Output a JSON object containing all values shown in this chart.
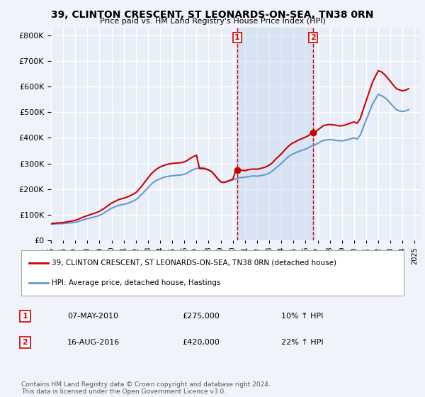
{
  "title": "39, CLINTON CRESCENT, ST LEONARDS-ON-SEA, TN38 0RN",
  "subtitle": "Price paid vs. HM Land Registry's House Price Index (HPI)",
  "ylabel_ticks": [
    "£0",
    "£100K",
    "£200K",
    "£300K",
    "£400K",
    "£500K",
    "£600K",
    "£700K",
    "£800K"
  ],
  "ytick_values": [
    0,
    100000,
    200000,
    300000,
    400000,
    500000,
    600000,
    700000,
    800000
  ],
  "ylim": [
    0,
    830000
  ],
  "xlim_start": 1995.0,
  "xlim_end": 2025.5,
  "background_color": "#f0f4fa",
  "plot_bg_color": "#e8eef8",
  "grid_color": "#ffffff",
  "transaction1": {
    "date": 2010.36,
    "price": 275000,
    "label": "1",
    "label_date": "07-MAY-2010",
    "label_price": "£275,000",
    "label_hpi": "10% ↑ HPI"
  },
  "transaction2": {
    "date": 2016.62,
    "price": 420000,
    "label": "2",
    "label_date": "16-AUG-2016",
    "label_price": "£420,000",
    "label_hpi": "22% ↑ HPI"
  },
  "red_line_color": "#cc0000",
  "blue_line_color": "#6699cc",
  "vline_color": "#cc0000",
  "legend_label1": "39, CLINTON CRESCENT, ST LEONARDS-ON-SEA, TN38 0RN (detached house)",
  "legend_label2": "HPI: Average price, detached house, Hastings",
  "footer": "Contains HM Land Registry data © Crown copyright and database right 2024.\nThis data is licensed under the Open Government Licence v3.0.",
  "xtick_years": [
    1995,
    1996,
    1997,
    1998,
    1999,
    2000,
    2001,
    2002,
    2003,
    2004,
    2005,
    2006,
    2007,
    2008,
    2009,
    2010,
    2011,
    2012,
    2013,
    2014,
    2015,
    2016,
    2017,
    2018,
    2019,
    2020,
    2021,
    2022,
    2023,
    2024,
    2025
  ],
  "hpi_data": {
    "years": [
      1995.0,
      1995.25,
      1995.5,
      1995.75,
      1996.0,
      1996.25,
      1996.5,
      1996.75,
      1997.0,
      1997.25,
      1997.5,
      1997.75,
      1998.0,
      1998.25,
      1998.5,
      1998.75,
      1999.0,
      1999.25,
      1999.5,
      1999.75,
      2000.0,
      2000.25,
      2000.5,
      2000.75,
      2001.0,
      2001.25,
      2001.5,
      2001.75,
      2002.0,
      2002.25,
      2002.5,
      2002.75,
      2003.0,
      2003.25,
      2003.5,
      2003.75,
      2004.0,
      2004.25,
      2004.5,
      2004.75,
      2005.0,
      2005.25,
      2005.5,
      2005.75,
      2006.0,
      2006.25,
      2006.5,
      2006.75,
      2007.0,
      2007.25,
      2007.5,
      2007.75,
      2008.0,
      2008.25,
      2008.5,
      2008.75,
      2009.0,
      2009.25,
      2009.5,
      2009.75,
      2010.0,
      2010.25,
      2010.5,
      2010.75,
      2011.0,
      2011.25,
      2011.5,
      2011.75,
      2012.0,
      2012.25,
      2012.5,
      2012.75,
      2013.0,
      2013.25,
      2013.5,
      2013.75,
      2014.0,
      2014.25,
      2014.5,
      2014.75,
      2015.0,
      2015.25,
      2015.5,
      2015.75,
      2016.0,
      2016.25,
      2016.5,
      2016.75,
      2017.0,
      2017.25,
      2017.5,
      2017.75,
      2018.0,
      2018.25,
      2018.5,
      2018.75,
      2019.0,
      2019.25,
      2019.5,
      2019.75,
      2020.0,
      2020.25,
      2020.5,
      2020.75,
      2021.0,
      2021.25,
      2021.5,
      2021.75,
      2022.0,
      2022.25,
      2022.5,
      2022.75,
      2023.0,
      2023.25,
      2023.5,
      2023.75,
      2024.0,
      2024.25,
      2024.5
    ],
    "values": [
      62000,
      63000,
      64000,
      64500,
      65000,
      66000,
      67000,
      68500,
      70000,
      73000,
      77000,
      81000,
      84000,
      87000,
      90000,
      93000,
      97000,
      103000,
      110000,
      118000,
      125000,
      130000,
      135000,
      138000,
      140000,
      143000,
      147000,
      152000,
      158000,
      168000,
      180000,
      193000,
      205000,
      218000,
      228000,
      235000,
      240000,
      245000,
      248000,
      250000,
      252000,
      253000,
      254000,
      255000,
      258000,
      263000,
      270000,
      276000,
      280000,
      283000,
      284000,
      280000,
      275000,
      268000,
      255000,
      240000,
      228000,
      225000,
      228000,
      232000,
      236000,
      240000,
      244000,
      245000,
      246000,
      248000,
      250000,
      251000,
      250000,
      252000,
      254000,
      257000,
      262000,
      270000,
      280000,
      290000,
      300000,
      312000,
      323000,
      332000,
      338000,
      343000,
      348000,
      352000,
      356000,
      362000,
      368000,
      372000,
      378000,
      385000,
      390000,
      392000,
      393000,
      392000,
      390000,
      389000,
      388000,
      390000,
      393000,
      397000,
      400000,
      395000,
      410000,
      440000,
      470000,
      500000,
      530000,
      550000,
      570000,
      565000,
      558000,
      548000,
      535000,
      522000,
      510000,
      505000,
      503000,
      505000,
      510000
    ]
  },
  "red_data": {
    "years": [
      1995.0,
      1995.25,
      1995.5,
      1995.75,
      1996.0,
      1996.25,
      1996.5,
      1996.75,
      1997.0,
      1997.25,
      1997.5,
      1997.75,
      1998.0,
      1998.25,
      1998.5,
      1998.75,
      1999.0,
      1999.25,
      1999.5,
      1999.75,
      2000.0,
      2000.25,
      2000.5,
      2000.75,
      2001.0,
      2001.25,
      2001.5,
      2001.75,
      2002.0,
      2002.25,
      2002.5,
      2002.75,
      2003.0,
      2003.25,
      2003.5,
      2003.75,
      2004.0,
      2004.25,
      2004.5,
      2004.75,
      2005.0,
      2005.25,
      2005.5,
      2005.75,
      2006.0,
      2006.25,
      2006.5,
      2006.75,
      2007.0,
      2007.25,
      2007.5,
      2007.75,
      2008.0,
      2008.25,
      2008.5,
      2008.75,
      2009.0,
      2009.25,
      2009.5,
      2009.75,
      2010.0,
      2010.25,
      2010.5,
      2010.75,
      2011.0,
      2011.25,
      2011.5,
      2011.75,
      2012.0,
      2012.25,
      2012.5,
      2012.75,
      2013.0,
      2013.25,
      2013.5,
      2013.75,
      2014.0,
      2014.25,
      2014.5,
      2014.75,
      2015.0,
      2015.25,
      2015.5,
      2015.75,
      2016.0,
      2016.25,
      2016.5,
      2016.75,
      2017.0,
      2017.25,
      2017.5,
      2017.75,
      2018.0,
      2018.25,
      2018.5,
      2018.75,
      2019.0,
      2019.25,
      2019.5,
      2019.75,
      2020.0,
      2020.25,
      2020.5,
      2020.75,
      2021.0,
      2021.25,
      2021.5,
      2021.75,
      2022.0,
      2022.25,
      2022.5,
      2022.75,
      2023.0,
      2023.25,
      2023.5,
      2023.75,
      2024.0,
      2024.25,
      2024.5
    ],
    "values": [
      65000,
      66000,
      67000,
      68000,
      69000,
      71000,
      73000,
      75000,
      78000,
      82000,
      87000,
      92000,
      96000,
      100000,
      104000,
      108000,
      113000,
      120000,
      128000,
      137000,
      145000,
      151000,
      157000,
      161000,
      164000,
      168000,
      173000,
      179000,
      186000,
      198000,
      212000,
      228000,
      243000,
      258000,
      270000,
      279000,
      286000,
      291000,
      295000,
      298000,
      300000,
      301000,
      302000,
      303000,
      306000,
      312000,
      320000,
      327000,
      332000,
      280000,
      280000,
      278000,
      274000,
      268000,
      255000,
      240000,
      228000,
      226000,
      229000,
      234000,
      238000,
      275000,
      275000,
      273000,
      272000,
      275000,
      277000,
      278000,
      277000,
      280000,
      283000,
      287000,
      293000,
      302000,
      315000,
      326000,
      337000,
      351000,
      363000,
      374000,
      381000,
      387000,
      393000,
      398000,
      403000,
      409000,
      420000,
      420000,
      430000,
      440000,
      448000,
      451000,
      452000,
      451000,
      449000,
      447000,
      447000,
      450000,
      454000,
      459000,
      462000,
      457000,
      474000,
      510000,
      545000,
      580000,
      615000,
      640000,
      662000,
      658000,
      648000,
      635000,
      620000,
      605000,
      592000,
      587000,
      584000,
      586000,
      592000
    ]
  }
}
